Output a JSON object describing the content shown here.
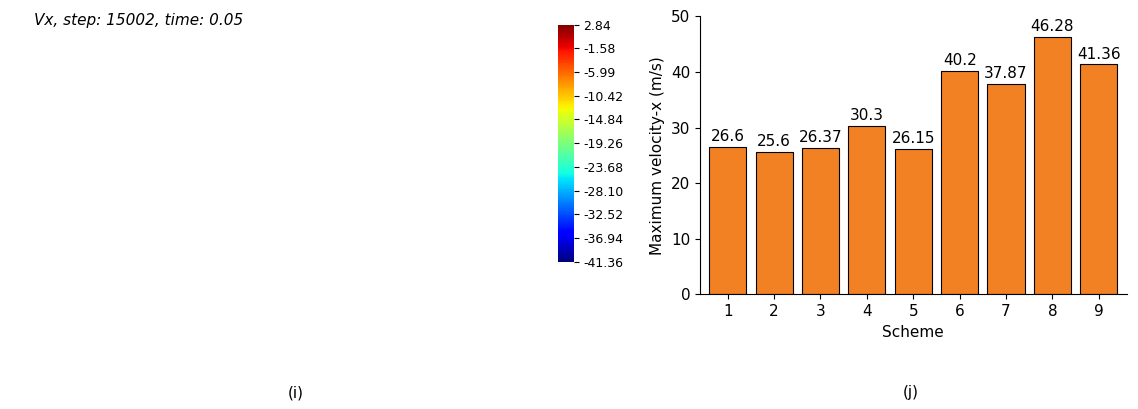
{
  "chart_data": [
    {
      "type": "heatmap",
      "title": "Vx, step: 15002, time: 0.05",
      "caption": "(i)",
      "colorbar_range": [
        -41.36,
        2.84
      ],
      "colorbar_ticks": [
        2.84,
        -1.58,
        -5.99,
        -10.42,
        -14.84,
        -19.26,
        -23.68,
        {
          "value": -28.1,
          "label": "-28.10"
        },
        -32.52,
        -36.94,
        -41.36
      ]
    },
    {
      "type": "bar",
      "caption": "(j)",
      "x_label": "Scheme",
      "y_label": "Maximum velocity-x (m/s)",
      "categories": [
        "1",
        "2",
        "3",
        "4",
        "5",
        "6",
        "7",
        "8",
        "9"
      ],
      "values": [
        26.6,
        25.6,
        26.37,
        30.3,
        26.15,
        40.2,
        37.87,
        46.28,
        41.36
      ],
      "color": "#f28123",
      "ylim": [
        0,
        50
      ],
      "yticks": [
        0,
        10,
        20,
        30,
        40,
        50
      ],
      "data_labels": true
    }
  ]
}
